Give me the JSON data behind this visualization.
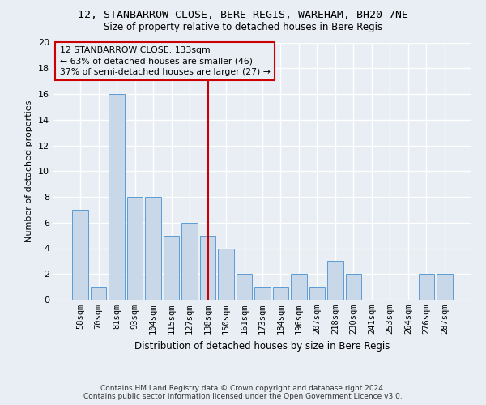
{
  "title_line1": "12, STANBARROW CLOSE, BERE REGIS, WAREHAM, BH20 7NE",
  "title_line2": "Size of property relative to detached houses in Bere Regis",
  "xlabel": "Distribution of detached houses by size in Bere Regis",
  "ylabel": "Number of detached properties",
  "categories": [
    "58sqm",
    "70sqm",
    "81sqm",
    "93sqm",
    "104sqm",
    "115sqm",
    "127sqm",
    "138sqm",
    "150sqm",
    "161sqm",
    "173sqm",
    "184sqm",
    "196sqm",
    "207sqm",
    "218sqm",
    "230sqm",
    "241sqm",
    "253sqm",
    "264sqm",
    "276sqm",
    "287sqm"
  ],
  "values": [
    7,
    1,
    16,
    8,
    8,
    5,
    6,
    5,
    4,
    2,
    1,
    1,
    2,
    1,
    3,
    2,
    0,
    0,
    0,
    2,
    2
  ],
  "bar_color": "#c8d8e8",
  "bar_edge_color": "#5b9bd5",
  "marker_index": 7,
  "marker_color": "#cc0000",
  "annotation_title": "12 STANBARROW CLOSE: 133sqm",
  "annotation_line1": "← 63% of detached houses are smaller (46)",
  "annotation_line2": "37% of semi-detached houses are larger (27) →",
  "annotation_box_color": "#cc0000",
  "ylim": [
    0,
    20
  ],
  "yticks": [
    0,
    2,
    4,
    6,
    8,
    10,
    12,
    14,
    16,
    18,
    20
  ],
  "footer_line1": "Contains HM Land Registry data © Crown copyright and database right 2024.",
  "footer_line2": "Contains public sector information licensed under the Open Government Licence v3.0.",
  "background_color": "#e8eef4",
  "grid_color": "#ffffff"
}
